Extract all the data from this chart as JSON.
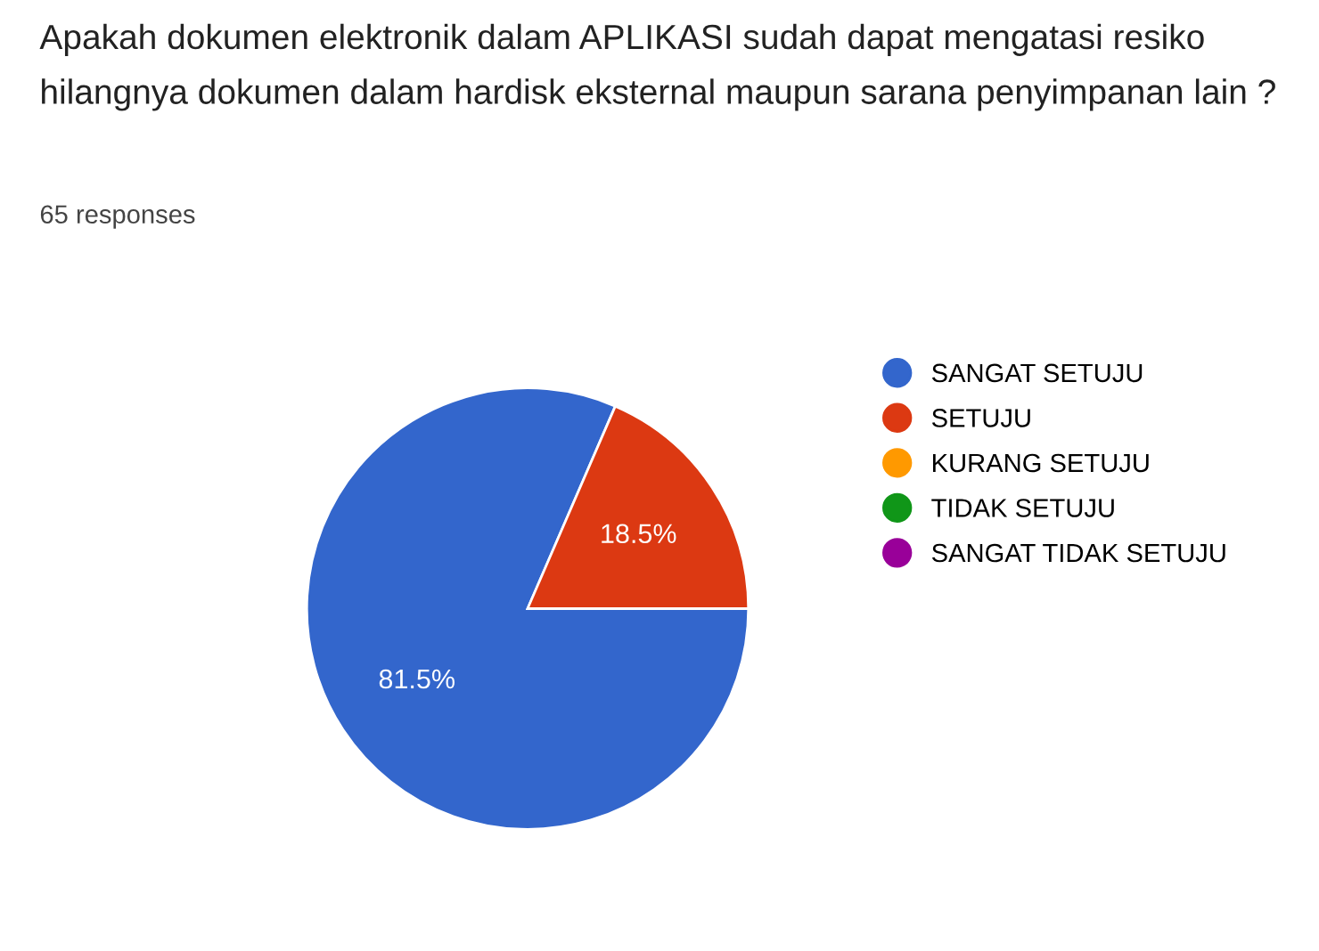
{
  "chart_data": {
    "type": "pie",
    "title": "Apakah dokumen elektronik dalam APLIKASI sudah dapat mengatasi resiko hilangnya dokumen dalam hardisk eksternal maupun sarana penyimpanan lain ?",
    "subtitle": "65 responses",
    "categories": [
      "SANGAT SETUJU",
      "SETUJU",
      "KURANG SETUJU",
      "TIDAK SETUJU",
      "SANGAT TIDAK SETUJU"
    ],
    "values": [
      81.5,
      18.5,
      0,
      0,
      0
    ],
    "value_labels": [
      "81.5%",
      "18.5%",
      null,
      null,
      null
    ],
    "colors": [
      "#3366cc",
      "#dc3912",
      "#ff9900",
      "#109618",
      "#990099"
    ],
    "legend": "right"
  }
}
